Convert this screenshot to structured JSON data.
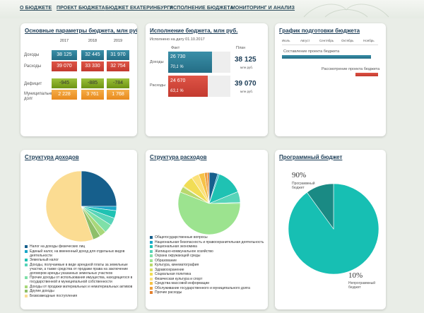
{
  "nav": [
    {
      "label": "О БЮДЖЕТЕ"
    },
    {
      "label": "ПРОЕКТ БЮДЖЕТА"
    },
    {
      "label": "БЮДЖЕТ ЕКАТЕРИНБУРГА"
    },
    {
      "label": "ИСПОЛНЕНИЕ БЮДЖЕТА"
    },
    {
      "label": "МОНИТОРИНГ И АНАЛИЗ"
    }
  ],
  "params": {
    "title": "Основные параметры бюджета, млн руб.",
    "years": [
      "2017",
      "2018",
      "2019"
    ],
    "rows": [
      {
        "label": "Доходы",
        "values": [
          "38 125",
          "32 445",
          "31 970"
        ]
      },
      {
        "label": "Расходы",
        "values": [
          "39 070",
          "33 330",
          "32 754"
        ]
      },
      {
        "label": "Дефицит",
        "values": [
          "-945",
          "-885",
          "-784"
        ]
      },
      {
        "label": "Муниципальный долг",
        "values": [
          "2 228",
          "3 761",
          "1 768"
        ]
      }
    ],
    "colors": {
      "income": "#2f7e97",
      "expense": "#d2463a",
      "deficit": "#7ea31a",
      "debt": "#f09a2b"
    }
  },
  "execution": {
    "title": "Исполнение бюджета, млн руб.",
    "date_label": "Исполнено на дату 01.10.2017",
    "fact_label": "Факт",
    "plan_label": "План",
    "unit": "млн руб.",
    "income": {
      "label": "Доходы",
      "fact": "26 730",
      "percent": "70,1 %",
      "plan": "38 125",
      "fraction": 0.701
    },
    "expense": {
      "label": "Расходы",
      "fact": "24 670",
      "percent": "63,1 %",
      "plan": "39 070",
      "fraction": 0.631
    }
  },
  "gantt": {
    "title": "График подготовки бюджета",
    "months": [
      "Июль",
      "Август",
      "Сентябрь",
      "Октябрь",
      "Ноябрь"
    ],
    "tasks": [
      {
        "label": "Составление проекта бюджета",
        "color": "#2f7e97"
      },
      {
        "label": "Рассмотрение проекта бюджета",
        "color": "#d2463a"
      }
    ]
  },
  "income_structure": {
    "title": "Структура доходов",
    "chart_data": {
      "type": "pie",
      "slices": [
        {
          "label": "Налог на доходы физических лиц",
          "value": 25,
          "color": "#165f8c"
        },
        {
          "label": "Единый налог, на вмененный доход для отдельных видов деятельности",
          "value": 2,
          "color": "#1aa7c9"
        },
        {
          "label": "Земельный налог",
          "value": 3.5,
          "color": "#1fc2b3"
        },
        {
          "label": "Доходы, получаемые в виде арендной платы за земельные участки, а также средства от продажи права на заключение договоров аренды указанных земельных участков",
          "value": 3.5,
          "color": "#58d4b9"
        },
        {
          "label": "Прочие доходы от использования имущества, находящегося в государственной и муниципальной собственности",
          "value": 4,
          "color": "#7fe0a8"
        },
        {
          "label": "Доходы от продажи материальных и нематериальных активов",
          "value": 3,
          "color": "#a8d87a"
        },
        {
          "label": "Другие доходы",
          "value": 3.5,
          "color": "#8fbf6a"
        },
        {
          "label": "Безвозмездные поступления",
          "value": 55.5,
          "color": "#fbdc92"
        }
      ]
    }
  },
  "expense_structure": {
    "title": "Структура расходов",
    "chart_data": {
      "type": "pie",
      "slices": [
        {
          "label": "Общегосударственные вопросы",
          "value": 4.5,
          "color": "#165f8c"
        },
        {
          "label": "Национальная безопасность и правоохранительная деятельность",
          "value": 0.8,
          "color": "#1aa7c9"
        },
        {
          "label": "Национальная экономика",
          "value": 13.5,
          "color": "#1fc2b3"
        },
        {
          "label": "Жилищно-коммунальное хозяйство",
          "value": 5.7,
          "color": "#58d4b9"
        },
        {
          "label": "Охрана окружающей среды",
          "value": 0.5,
          "color": "#7fe0a8"
        },
        {
          "label": "Образование",
          "value": 56,
          "color": "#9ce38f"
        },
        {
          "label": "Культура, кинематография",
          "value": 3,
          "color": "#b9d86d"
        },
        {
          "label": "Здравоохранение",
          "value": 0.5,
          "color": "#d8de63"
        },
        {
          "label": "Социальная политика",
          "value": 6,
          "color": "#f1dd55"
        },
        {
          "label": "Физическая культура и спорт",
          "value": 4,
          "color": "#fbe17a"
        },
        {
          "label": "Средства массовой информации",
          "value": 3,
          "color": "#f6c247"
        },
        {
          "label": "Обслуживание государственного и муниципального долга",
          "value": 1.5,
          "color": "#ef9f3a"
        },
        {
          "label": "Прочие расходы",
          "value": 1,
          "color": "#e4802f"
        }
      ]
    }
  },
  "program_budget": {
    "title": "Программный бюджет",
    "chart_data": {
      "type": "pie",
      "slices": [
        {
          "label": "Программный бюджет",
          "value": 90,
          "percent": "90%",
          "color": "#17bfb3"
        },
        {
          "label": "Непрограммный бюджет",
          "value": 10,
          "percent": "10%",
          "color": "#1a8a84"
        }
      ]
    }
  }
}
